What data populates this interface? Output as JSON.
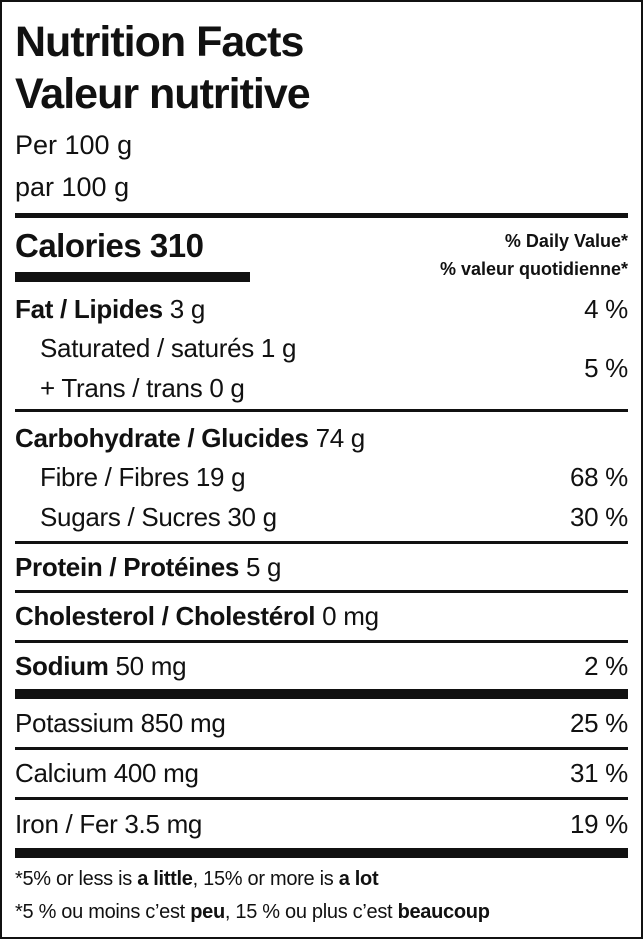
{
  "title_en": "Nutrition Facts",
  "title_fr": "Valeur nutritive",
  "serving_en": "Per 100 g",
  "serving_fr": "par 100 g",
  "calories": {
    "label": "Calories",
    "value": "310"
  },
  "daily_value_en": "% Daily Value*",
  "daily_value_fr": "% valeur quotidienne*",
  "fat": {
    "label": "Fat / Lipides",
    "amount": "3 g",
    "dv": "4 %"
  },
  "saturated": {
    "label": "Saturated / saturés 1 g"
  },
  "trans": {
    "label": "+ Trans / trans 0 g"
  },
  "sat_trans_dv": "5 %",
  "carbs": {
    "label": "Carbohydrate / Glucides",
    "amount": "74 g"
  },
  "fibre": {
    "label": "Fibre / Fibres 19 g",
    "dv": "68 %"
  },
  "sugars": {
    "label": "Sugars / Sucres 30 g",
    "dv": "30 %"
  },
  "protein": {
    "label": "Protein / Protéines",
    "amount": "5 g"
  },
  "cholesterol": {
    "label": "Cholesterol / Cholestérol",
    "amount": "0 mg"
  },
  "sodium": {
    "label": "Sodium",
    "amount": "50 mg",
    "dv": "2 %"
  },
  "potassium": {
    "label": "Potassium 850 mg",
    "dv": "25 %"
  },
  "calcium": {
    "label": "Calcium 400 mg",
    "dv": "31 %"
  },
  "iron": {
    "label": "Iron / Fer 3.5 mg",
    "dv": "19 %"
  },
  "footnote_en": {
    "a": "*5% or less is ",
    "b": "a little",
    "c": ", 15% or more is ",
    "d": "a lot"
  },
  "footnote_fr": {
    "a": "*5 % ou moins c’est ",
    "b": "peu",
    "c": ", 15 % ou plus c’est ",
    "d": "beaucoup"
  }
}
